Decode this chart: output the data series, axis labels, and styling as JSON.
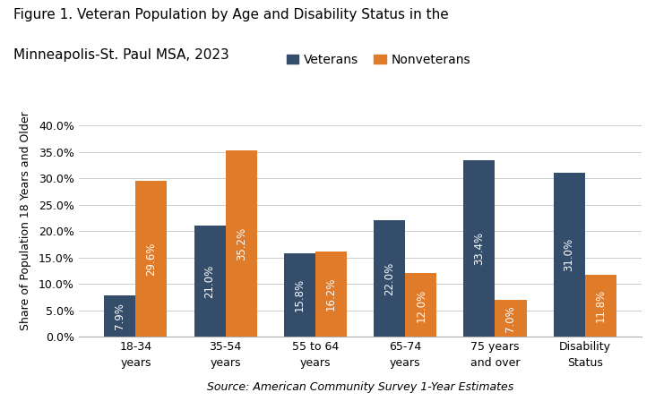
{
  "categories": [
    "18-34\nyears",
    "35-54\nyears",
    "55 to 64\nyears",
    "65-74\nyears",
    "75 years\nand over",
    "Disability\nStatus"
  ],
  "veterans": [
    7.9,
    21.0,
    15.8,
    22.0,
    33.4,
    31.0
  ],
  "nonveterans": [
    29.6,
    35.2,
    16.2,
    12.0,
    7.0,
    11.8
  ],
  "veteran_labels": [
    "7.9%",
    "21.0%",
    "15.8%",
    "22.0%",
    "33.4%",
    "31.0%"
  ],
  "nonveteran_labels": [
    "29.6%",
    "35.2%",
    "16.2%",
    "12.0%",
    "7.0%",
    "11.8%"
  ],
  "veteran_color": "#344D6B",
  "nonveteran_color": "#E07B2A",
  "title_line1": "Figure 1. Veteran Population by Age and Disability Status in the",
  "title_line2": "Minneapolis-St. Paul MSA, 2023",
  "ylabel": "Share of Population 18 Years and Older",
  "source": "Source: American Community Survey 1-Year Estimates",
  "legend_veterans": "Veterans",
  "legend_nonveterans": "Nonveterans",
  "ylim": [
    0,
    44
  ],
  "yticks": [
    0,
    5,
    10,
    15,
    20,
    25,
    30,
    35,
    40
  ],
  "ytick_labels": [
    "0.0%",
    "5.0%",
    "10.0%",
    "15.0%",
    "20.0%",
    "25.0%",
    "30.0%",
    "35.0%",
    "40.0%"
  ],
  "bar_width": 0.35,
  "label_fontsize": 8.5,
  "title_fontsize": 11,
  "axis_label_fontsize": 9,
  "tick_fontsize": 9,
  "legend_fontsize": 10,
  "source_fontsize": 9,
  "background_color": "#ffffff"
}
